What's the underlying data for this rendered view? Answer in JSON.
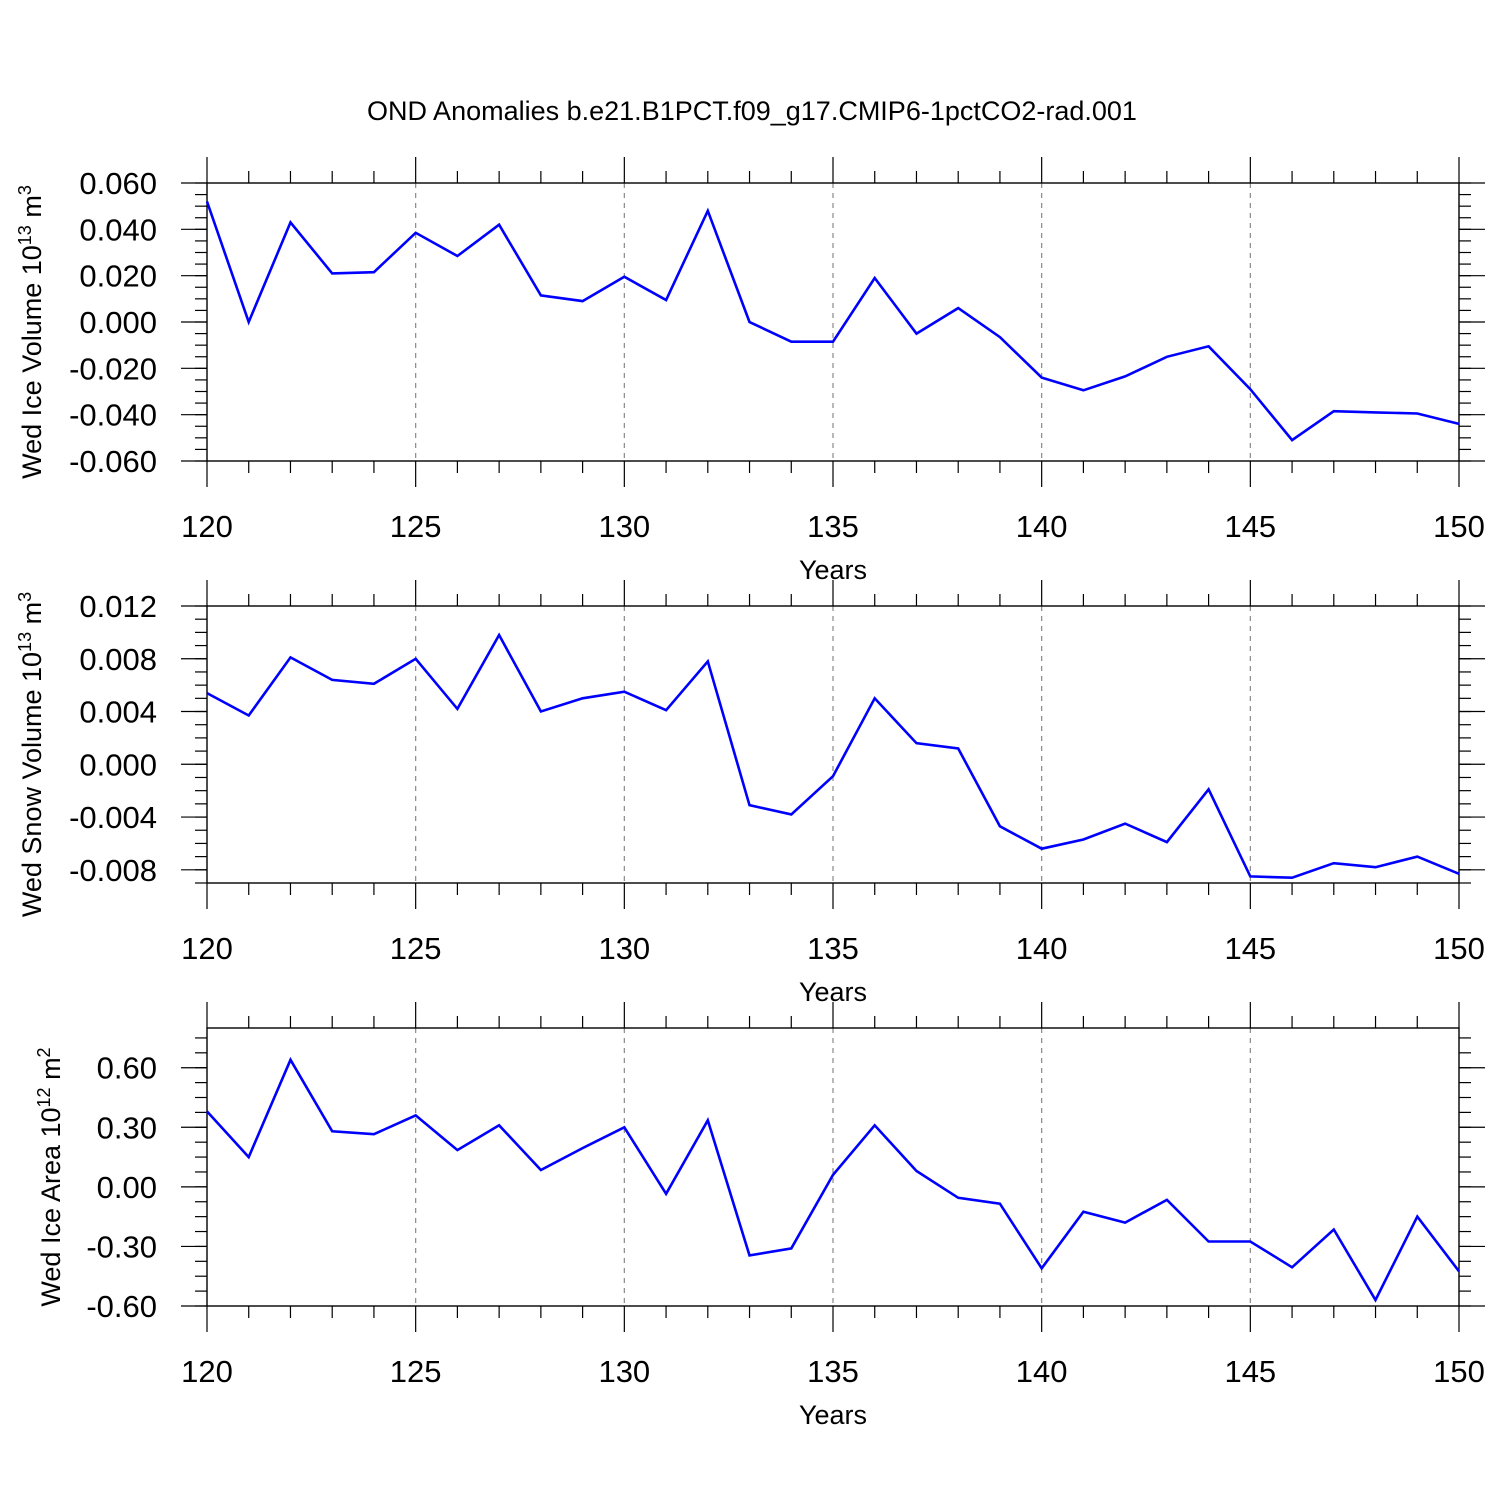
{
  "title": "OND Anomalies b.e21.B1PCT.f09_g17.CMIP6-1pctCO2-rad.001",
  "chart_data": [
    {
      "type": "line",
      "xlabel": "Years",
      "ylabel": "Wed Ice Volume 10",
      "ylabel_exp": "13",
      "ylabel_unit": " m",
      "ylabel_unit_exp": "3",
      "xlim": [
        120,
        150
      ],
      "ylim": [
        -0.06,
        0.06
      ],
      "x_ticks": [
        120,
        125,
        130,
        135,
        140,
        145,
        150
      ],
      "x_tick_labels": [
        "120",
        "125",
        "130",
        "135",
        "140",
        "145",
        "150"
      ],
      "y_ticks": [
        0.06,
        0.04,
        0.02,
        0.0,
        -0.02,
        -0.04,
        -0.06
      ],
      "y_tick_labels": [
        "0.060",
        "0.040",
        "0.020",
        "0.000",
        "-0.020",
        "-0.040",
        "-0.060"
      ],
      "y_minor_step": 0.005,
      "grid": "vertical dashed at major x ticks",
      "series_color": "#0000ff",
      "x": [
        120,
        121,
        122,
        123,
        124,
        125,
        126,
        127,
        128,
        129,
        130,
        131,
        132,
        133,
        134,
        135,
        136,
        137,
        138,
        139,
        140,
        141,
        142,
        143,
        144,
        145,
        146,
        147,
        148,
        149,
        150
      ],
      "values": [
        0.052,
        0.0,
        0.043,
        0.021,
        0.0215,
        0.0385,
        0.0285,
        0.042,
        0.0115,
        0.009,
        0.0195,
        0.0095,
        0.048,
        0.0,
        -0.0085,
        -0.0085,
        0.019,
        -0.005,
        0.006,
        -0.0065,
        -0.024,
        -0.0295,
        -0.0235,
        -0.015,
        -0.0105,
        -0.029,
        -0.051,
        -0.0385,
        -0.039,
        -0.0395,
        -0.044
      ]
    },
    {
      "type": "line",
      "xlabel": "Years",
      "ylabel": "Wed Snow Volume 10",
      "ylabel_exp": "13",
      "ylabel_unit": " m",
      "ylabel_unit_exp": "3",
      "xlim": [
        120,
        150
      ],
      "ylim": [
        -0.009,
        0.012
      ],
      "x_ticks": [
        120,
        125,
        130,
        135,
        140,
        145,
        150
      ],
      "x_tick_labels": [
        "120",
        "125",
        "130",
        "135",
        "140",
        "145",
        "150"
      ],
      "y_ticks": [
        0.012,
        0.008,
        0.004,
        0.0,
        -0.004,
        -0.008
      ],
      "y_tick_labels": [
        "0.012",
        "0.008",
        "0.004",
        "0.000",
        "-0.004",
        "-0.008"
      ],
      "y_minor_step": 0.001,
      "grid": "vertical dashed at major x ticks",
      "series_color": "#0000ff",
      "x": [
        120,
        121,
        122,
        123,
        124,
        125,
        126,
        127,
        128,
        129,
        130,
        131,
        132,
        133,
        134,
        135,
        136,
        137,
        138,
        139,
        140,
        141,
        142,
        143,
        144,
        145,
        146,
        147,
        148,
        149,
        150
      ],
      "values": [
        0.0054,
        0.0037,
        0.0081,
        0.0064,
        0.0061,
        0.008,
        0.0042,
        0.0098,
        0.004,
        0.005,
        0.0055,
        0.0041,
        0.0078,
        -0.0031,
        -0.0038,
        -0.0009,
        0.005,
        0.0016,
        0.0012,
        -0.0047,
        -0.0064,
        -0.0057,
        -0.0045,
        -0.0059,
        -0.0019,
        -0.0085,
        -0.0086,
        -0.0075,
        -0.0078,
        -0.007,
        -0.0083
      ]
    },
    {
      "type": "line",
      "xlabel": "Years",
      "ylabel": "Wed Ice Area 10",
      "ylabel_exp": "12",
      "ylabel_unit": " m",
      "ylabel_unit_exp": "2",
      "xlim": [
        120,
        150
      ],
      "ylim": [
        -0.6,
        0.8
      ],
      "x_ticks": [
        120,
        125,
        130,
        135,
        140,
        145,
        150
      ],
      "x_tick_labels": [
        "120",
        "125",
        "130",
        "135",
        "140",
        "145",
        "150"
      ],
      "y_ticks": [
        0.6,
        0.3,
        0.0,
        -0.3,
        -0.6
      ],
      "y_tick_labels": [
        "0.60",
        "0.30",
        "0.00",
        "-0.30",
        "-0.60"
      ],
      "y_minor_step": 0.075,
      "grid": "vertical dashed at major x ticks",
      "series_color": "#0000ff",
      "x": [
        120,
        121,
        122,
        123,
        124,
        125,
        126,
        127,
        128,
        129,
        130,
        131,
        132,
        133,
        134,
        135,
        136,
        137,
        138,
        139,
        140,
        141,
        142,
        143,
        144,
        145,
        146,
        147,
        148,
        149,
        150
      ],
      "values": [
        0.38,
        0.15,
        0.64,
        0.28,
        0.265,
        0.36,
        0.185,
        0.31,
        0.085,
        0.195,
        0.3,
        -0.035,
        0.335,
        -0.345,
        -0.31,
        0.06,
        0.31,
        0.08,
        -0.055,
        -0.085,
        -0.41,
        -0.125,
        -0.18,
        -0.065,
        -0.275,
        -0.275,
        -0.405,
        -0.215,
        -0.57,
        -0.15,
        -0.425
      ]
    }
  ]
}
